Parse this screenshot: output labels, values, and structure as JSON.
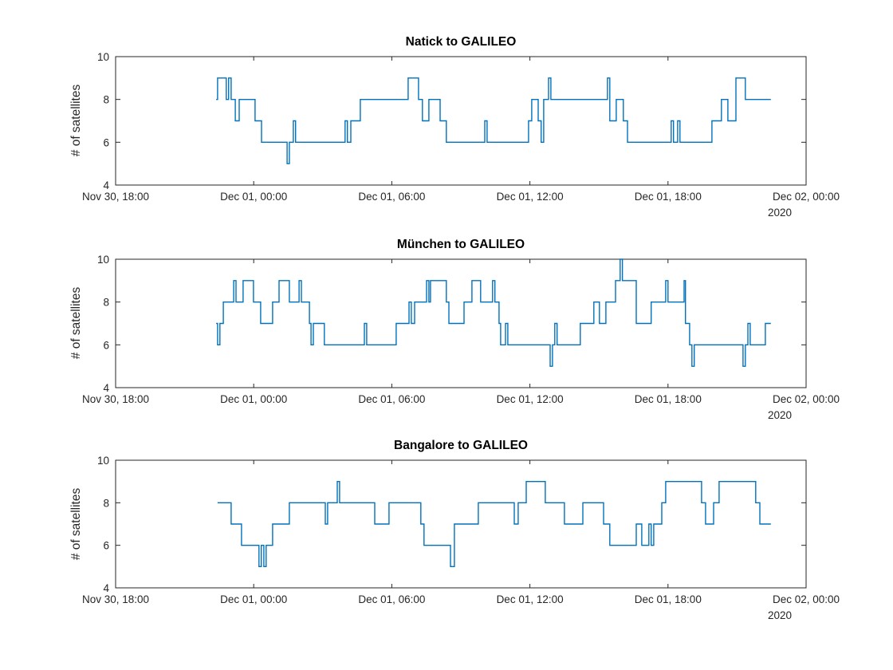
{
  "ylabel": "# of satellites",
  "colors": {
    "line": "#0072BD",
    "axis": "#262626",
    "text": "#262626",
    "title": "#000000",
    "background": "#ffffff"
  },
  "x_axis": {
    "unit": "hours since Nov 30, 18:00",
    "range_hours": [
      0,
      30
    ],
    "tick_hours": [
      0,
      6,
      12,
      18,
      24,
      30
    ],
    "tick_labels": [
      "Nov 30, 18:00",
      "Dec 01, 00:00",
      "Dec 01, 06:00",
      "Dec 01, 12:00",
      "Dec 01, 18:00",
      "Dec 02, 00:00"
    ],
    "secondary_label": "2020"
  },
  "y_axis": {
    "ticks": [
      4,
      6,
      8,
      10
    ],
    "range": [
      4,
      10
    ]
  },
  "chart_data": [
    {
      "type": "line",
      "style": "step-post",
      "title": "Natick to GALILEO",
      "points": [
        [
          4.37,
          8
        ],
        [
          4.43,
          9
        ],
        [
          4.81,
          8
        ],
        [
          4.91,
          9
        ],
        [
          5.02,
          8
        ],
        [
          5.2,
          7
        ],
        [
          5.37,
          8
        ],
        [
          6.06,
          7
        ],
        [
          6.34,
          6
        ],
        [
          7.45,
          5
        ],
        [
          7.55,
          6
        ],
        [
          7.72,
          7
        ],
        [
          7.82,
          6
        ],
        [
          9.97,
          7
        ],
        [
          10.07,
          6
        ],
        [
          10.22,
          7
        ],
        [
          10.63,
          8
        ],
        [
          12.71,
          9
        ],
        [
          13.16,
          8
        ],
        [
          13.33,
          7
        ],
        [
          13.61,
          8
        ],
        [
          14.1,
          7
        ],
        [
          14.37,
          6
        ],
        [
          16.04,
          7
        ],
        [
          16.14,
          6
        ],
        [
          17.94,
          7
        ],
        [
          18.08,
          8
        ],
        [
          18.36,
          7
        ],
        [
          18.49,
          6
        ],
        [
          18.6,
          8
        ],
        [
          18.81,
          9
        ],
        [
          18.91,
          8
        ],
        [
          21.37,
          9
        ],
        [
          21.47,
          7
        ],
        [
          21.75,
          8
        ],
        [
          22.06,
          7
        ],
        [
          22.24,
          6
        ],
        [
          24.14,
          7
        ],
        [
          24.24,
          6
        ],
        [
          24.42,
          7
        ],
        [
          24.52,
          6
        ],
        [
          25.91,
          7
        ],
        [
          26.32,
          8
        ],
        [
          26.6,
          7
        ],
        [
          26.95,
          9
        ],
        [
          27.36,
          8
        ],
        [
          28.47,
          8
        ]
      ]
    },
    {
      "type": "line",
      "style": "step-post",
      "title": "München to GALILEO",
      "points": [
        [
          4.37,
          7
        ],
        [
          4.43,
          6
        ],
        [
          4.53,
          7
        ],
        [
          4.68,
          8
        ],
        [
          5.13,
          9
        ],
        [
          5.23,
          8
        ],
        [
          5.54,
          9
        ],
        [
          5.99,
          8
        ],
        [
          6.3,
          7
        ],
        [
          6.82,
          8
        ],
        [
          7.1,
          9
        ],
        [
          7.55,
          8
        ],
        [
          7.97,
          9
        ],
        [
          8.07,
          8
        ],
        [
          8.42,
          7
        ],
        [
          8.49,
          6
        ],
        [
          8.59,
          7
        ],
        [
          9.07,
          6
        ],
        [
          10.81,
          7
        ],
        [
          10.91,
          6
        ],
        [
          12.19,
          7
        ],
        [
          12.75,
          8
        ],
        [
          12.85,
          7
        ],
        [
          12.99,
          8
        ],
        [
          13.51,
          9
        ],
        [
          13.61,
          8
        ],
        [
          13.68,
          9
        ],
        [
          14.37,
          8
        ],
        [
          14.48,
          7
        ],
        [
          15.14,
          8
        ],
        [
          15.48,
          9
        ],
        [
          15.86,
          8
        ],
        [
          16.38,
          9
        ],
        [
          16.48,
          8
        ],
        [
          16.66,
          7
        ],
        [
          16.73,
          6
        ],
        [
          16.94,
          7
        ],
        [
          17.04,
          6
        ],
        [
          18.88,
          5
        ],
        [
          18.98,
          6
        ],
        [
          19.08,
          7
        ],
        [
          19.18,
          6
        ],
        [
          20.19,
          7
        ],
        [
          20.78,
          8
        ],
        [
          21.02,
          7
        ],
        [
          21.3,
          8
        ],
        [
          21.72,
          9
        ],
        [
          21.92,
          10
        ],
        [
          22.02,
          9
        ],
        [
          22.62,
          7
        ],
        [
          23.27,
          8
        ],
        [
          23.9,
          9
        ],
        [
          24.0,
          8
        ],
        [
          24.7,
          9
        ],
        [
          24.76,
          7
        ],
        [
          24.94,
          6
        ],
        [
          25.04,
          5
        ],
        [
          25.14,
          6
        ],
        [
          27.26,
          5
        ],
        [
          27.36,
          6
        ],
        [
          27.47,
          7
        ],
        [
          27.57,
          6
        ],
        [
          28.23,
          7
        ],
        [
          28.47,
          7
        ]
      ]
    },
    {
      "type": "line",
      "style": "step-post",
      "title": "Bangalore to GALILEO",
      "points": [
        [
          4.43,
          8
        ],
        [
          5.02,
          7
        ],
        [
          5.47,
          6
        ],
        [
          6.23,
          5
        ],
        [
          6.33,
          6
        ],
        [
          6.44,
          5
        ],
        [
          6.54,
          6
        ],
        [
          6.82,
          7
        ],
        [
          7.55,
          8
        ],
        [
          9.11,
          7
        ],
        [
          9.21,
          8
        ],
        [
          9.63,
          9
        ],
        [
          9.73,
          8
        ],
        [
          11.26,
          7
        ],
        [
          11.88,
          8
        ],
        [
          13.26,
          7
        ],
        [
          13.4,
          6
        ],
        [
          14.55,
          5
        ],
        [
          14.72,
          7
        ],
        [
          15.76,
          8
        ],
        [
          17.32,
          7
        ],
        [
          17.49,
          8
        ],
        [
          17.84,
          9
        ],
        [
          18.67,
          8
        ],
        [
          19.5,
          7
        ],
        [
          20.3,
          8
        ],
        [
          21.2,
          7
        ],
        [
          21.47,
          6
        ],
        [
          22.62,
          7
        ],
        [
          22.86,
          6
        ],
        [
          23.17,
          7
        ],
        [
          23.27,
          6
        ],
        [
          23.38,
          7
        ],
        [
          23.73,
          8
        ],
        [
          23.9,
          9
        ],
        [
          25.46,
          8
        ],
        [
          25.63,
          7
        ],
        [
          25.98,
          8
        ],
        [
          26.22,
          9
        ],
        [
          27.81,
          8
        ],
        [
          27.99,
          7
        ],
        [
          28.47,
          7
        ]
      ]
    }
  ]
}
